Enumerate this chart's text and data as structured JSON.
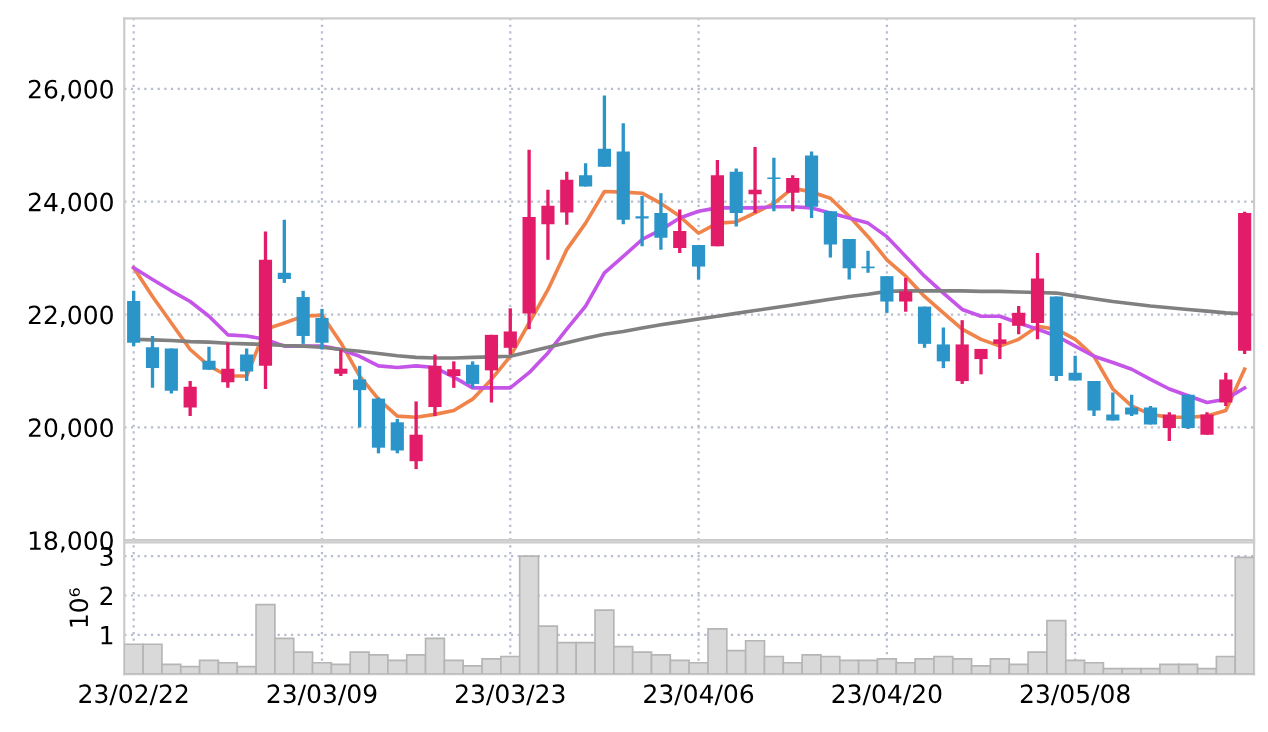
{
  "chart_data": [
    {
      "type": "candlestick",
      "categories": [
        null,
        null,
        null,
        null,
        null,
        null,
        null,
        null,
        null,
        null,
        null,
        null,
        null,
        null,
        null,
        null,
        null,
        null,
        null,
        null,
        null,
        null,
        null,
        null,
        null,
        null,
        null,
        null,
        null,
        null,
        null,
        null,
        null,
        null,
        null,
        null,
        null,
        null,
        null,
        null,
        null,
        null,
        null,
        null,
        null,
        null,
        null,
        null,
        null,
        null,
        null,
        null,
        null,
        null,
        null,
        null,
        null,
        null,
        null,
        null
      ],
      "ohlc": [
        [
          22240,
          22420,
          21440,
          21500
        ],
        [
          21420,
          21620,
          20700,
          21050
        ],
        [
          21400,
          21400,
          20600,
          20650
        ],
        [
          20350,
          20820,
          20200,
          20720
        ],
        [
          21180,
          21430,
          21020,
          21020
        ],
        [
          20800,
          21500,
          20700,
          21040
        ],
        [
          21290,
          21400,
          20820,
          20990
        ],
        [
          21090,
          23470,
          20680,
          22970
        ],
        [
          22740,
          23680,
          22560,
          22630
        ],
        [
          22310,
          22420,
          21480,
          21620
        ],
        [
          21940,
          22100,
          21380,
          21500
        ],
        [
          20950,
          21380,
          20910,
          21040
        ],
        [
          20850,
          21090,
          20000,
          20660
        ],
        [
          20510,
          20530,
          19540,
          19640
        ],
        [
          20090,
          20150,
          19540,
          19590
        ],
        [
          19400,
          20460,
          19260,
          19870
        ],
        [
          20360,
          21290,
          20200,
          21090
        ],
        [
          20910,
          21170,
          20700,
          21030
        ],
        [
          21110,
          21170,
          20700,
          20770
        ],
        [
          21010,
          21640,
          20440,
          21640
        ],
        [
          21410,
          22110,
          21290,
          21700
        ],
        [
          22020,
          24920,
          21740,
          23730
        ],
        [
          23600,
          24210,
          22970,
          23930
        ],
        [
          23810,
          24530,
          23590,
          24390
        ],
        [
          24470,
          24680,
          24270,
          24270
        ],
        [
          24940,
          25880,
          24620,
          24620
        ],
        [
          24890,
          25390,
          23600,
          23680
        ],
        [
          23740,
          24100,
          23210,
          23700
        ],
        [
          23800,
          24150,
          23150,
          23360
        ],
        [
          23180,
          23860,
          23090,
          23480
        ],
        [
          23230,
          23230,
          22620,
          22850
        ],
        [
          23210,
          24740,
          23210,
          24470
        ],
        [
          24530,
          24590,
          23560,
          23800
        ],
        [
          24130,
          24970,
          23800,
          24210
        ],
        [
          24430,
          24780,
          23830,
          24400
        ],
        [
          24160,
          24470,
          23830,
          24420
        ],
        [
          24820,
          24890,
          23710,
          23910
        ],
        [
          23830,
          23830,
          23010,
          23240
        ],
        [
          23340,
          23340,
          22620,
          22820
        ],
        [
          22850,
          23130,
          22740,
          22820
        ],
        [
          22680,
          22680,
          22030,
          22230
        ],
        [
          22230,
          22650,
          22050,
          22410
        ],
        [
          22140,
          22140,
          21410,
          21480
        ],
        [
          21470,
          21770,
          21050,
          21170
        ],
        [
          20820,
          21900,
          20770,
          21470
        ],
        [
          21210,
          21390,
          20940,
          21390
        ],
        [
          21480,
          21850,
          21210,
          21560
        ],
        [
          21800,
          22150,
          21650,
          22030
        ],
        [
          21850,
          23090,
          21560,
          22640
        ],
        [
          22320,
          22320,
          20820,
          20910
        ],
        [
          20970,
          21270,
          20830,
          20830
        ],
        [
          20820,
          20820,
          20200,
          20300
        ],
        [
          20230,
          20620,
          20120,
          20120
        ],
        [
          20350,
          20580,
          20200,
          20230
        ],
        [
          20350,
          20380,
          20050,
          20050
        ],
        [
          19990,
          20270,
          19760,
          20230
        ],
        [
          20580,
          20580,
          19970,
          19990
        ],
        [
          19870,
          20270,
          19870,
          20230
        ],
        [
          20440,
          20970,
          20380,
          20850
        ],
        [
          21360,
          23820,
          21300,
          23800
        ]
      ],
      "colors": [
        "#2b95c9",
        "#2b95c9",
        "#2b95c9",
        "#e31c69",
        "#2b95c9",
        "#e31c69",
        "#2b95c9",
        "#e31c69",
        "#2b95c9",
        "#2b95c9",
        "#2b95c9",
        "#e31c69",
        "#2b95c9",
        "#2b95c9",
        "#2b95c9",
        "#e31c69",
        "#e31c69",
        "#e31c69",
        "#2b95c9",
        "#e31c69",
        "#e31c69",
        "#e31c69",
        "#e31c69",
        "#e31c69",
        "#2b95c9",
        "#2b95c9",
        "#2b95c9",
        "#2b95c9",
        "#2b95c9",
        "#e31c69",
        "#2b95c9",
        "#e31c69",
        "#2b95c9",
        "#e31c69",
        "#2b95c9",
        "#e31c69",
        "#2b95c9",
        "#2b95c9",
        "#2b95c9",
        "#2b95c9",
        "#2b95c9",
        "#e31c69",
        "#2b95c9",
        "#2b95c9",
        "#e31c69",
        "#e31c69",
        "#e31c69",
        "#e31c69",
        "#e31c69",
        "#2b95c9",
        "#2b95c9",
        "#2b95c9",
        "#2b95c9",
        "#2b95c9",
        "#2b95c9",
        "#e31c69",
        "#2b95c9",
        "#e31c69",
        "#e31c69",
        "#e31c69"
      ],
      "series": [
        {
          "type": "line",
          "color": "#f0834a",
          "values": [
            22830,
            22320,
            21850,
            21380,
            21090,
            20910,
            20910,
            21740,
            21850,
            21970,
            21990,
            21500,
            20910,
            20500,
            20200,
            20180,
            20230,
            20300,
            20500,
            20850,
            21260,
            21850,
            22440,
            23150,
            23620,
            24180,
            24170,
            24150,
            23970,
            23740,
            23440,
            23620,
            23640,
            23800,
            23970,
            24240,
            24170,
            24060,
            23740,
            23380,
            22970,
            22680,
            22320,
            22030,
            21740,
            21560,
            21440,
            21560,
            21790,
            21740,
            21560,
            21260,
            20680,
            20380,
            20230,
            20180,
            20180,
            20200,
            20300,
            21030
          ]
        },
        {
          "type": "line",
          "color": "#c455e8",
          "values": [
            22830,
            22620,
            22420,
            22230,
            21970,
            21640,
            21620,
            21560,
            21440,
            21440,
            21440,
            21380,
            21260,
            21090,
            21060,
            21090,
            21060,
            20890,
            20700,
            20700,
            20700,
            20970,
            21320,
            21740,
            22150,
            22740,
            23030,
            23330,
            23500,
            23710,
            23830,
            23890,
            23890,
            23890,
            23910,
            23910,
            23890,
            23800,
            23710,
            23620,
            23380,
            23030,
            22680,
            22380,
            22090,
            21970,
            21970,
            21850,
            21740,
            21620,
            21440,
            21260,
            21150,
            21030,
            20850,
            20680,
            20560,
            20440,
            20500,
            20700
          ]
        },
        {
          "type": "line",
          "color": "#808080",
          "values": [
            21560,
            21550,
            21540,
            21520,
            21510,
            21490,
            21480,
            21470,
            21450,
            21440,
            21420,
            21380,
            21350,
            21310,
            21270,
            21240,
            21230,
            21230,
            21240,
            21250,
            21260,
            21340,
            21420,
            21500,
            21580,
            21650,
            21700,
            21760,
            21820,
            21870,
            21920,
            21970,
            22020,
            22070,
            22120,
            22170,
            22220,
            22270,
            22320,
            22360,
            22410,
            22420,
            22420,
            22420,
            22420,
            22410,
            22410,
            22400,
            22390,
            22380,
            22330,
            22280,
            22230,
            22190,
            22150,
            22120,
            22090,
            22060,
            22030,
            22010
          ]
        }
      ],
      "ylim": [
        18000,
        27250
      ],
      "yticks": [
        {
          "value": 18000,
          "label": "18,000"
        },
        {
          "value": 20000,
          "label": "20,000"
        },
        {
          "value": 22000,
          "label": "22,000"
        },
        {
          "value": 24000,
          "label": "24,000"
        },
        {
          "value": 26000,
          "label": "26,000"
        }
      ],
      "grid": true,
      "tick_labels": "y"
    },
    {
      "type": "bar",
      "categories": [
        "23/02/22",
        null,
        null,
        null,
        null,
        null,
        null,
        null,
        null,
        null,
        "23/03/09",
        null,
        null,
        null,
        null,
        null,
        null,
        null,
        null,
        null,
        "23/03/23",
        null,
        null,
        null,
        null,
        null,
        null,
        null,
        null,
        null,
        "23/04/06",
        null,
        null,
        null,
        null,
        null,
        null,
        null,
        null,
        null,
        "23/04/20",
        null,
        null,
        null,
        null,
        null,
        null,
        null,
        null,
        null,
        "23/05/08",
        null,
        null,
        null,
        null,
        null,
        null,
        null,
        null,
        null
      ],
      "values": [
        0.76,
        0.76,
        0.25,
        0.19,
        0.35,
        0.29,
        0.19,
        1.77,
        0.91,
        0.56,
        0.29,
        0.25,
        0.56,
        0.49,
        0.35,
        0.49,
        0.91,
        0.35,
        0.21,
        0.39,
        0.45,
        3.0,
        1.22,
        0.8,
        0.8,
        1.63,
        0.7,
        0.56,
        0.49,
        0.35,
        0.29,
        1.15,
        0.6,
        0.85,
        0.45,
        0.29,
        0.49,
        0.45,
        0.35,
        0.35,
        0.39,
        0.29,
        0.39,
        0.45,
        0.39,
        0.21,
        0.39,
        0.25,
        0.56,
        1.36,
        0.35,
        0.29,
        0.14,
        0.14,
        0.14,
        0.25,
        0.25,
        0.14,
        0.45,
        2.97
      ],
      "color": "#d9d9d9",
      "ylabel": "10⁶",
      "ylim": [
        0,
        3.35
      ],
      "yticks": [
        1,
        2,
        3
      ],
      "grid": true
    }
  ]
}
